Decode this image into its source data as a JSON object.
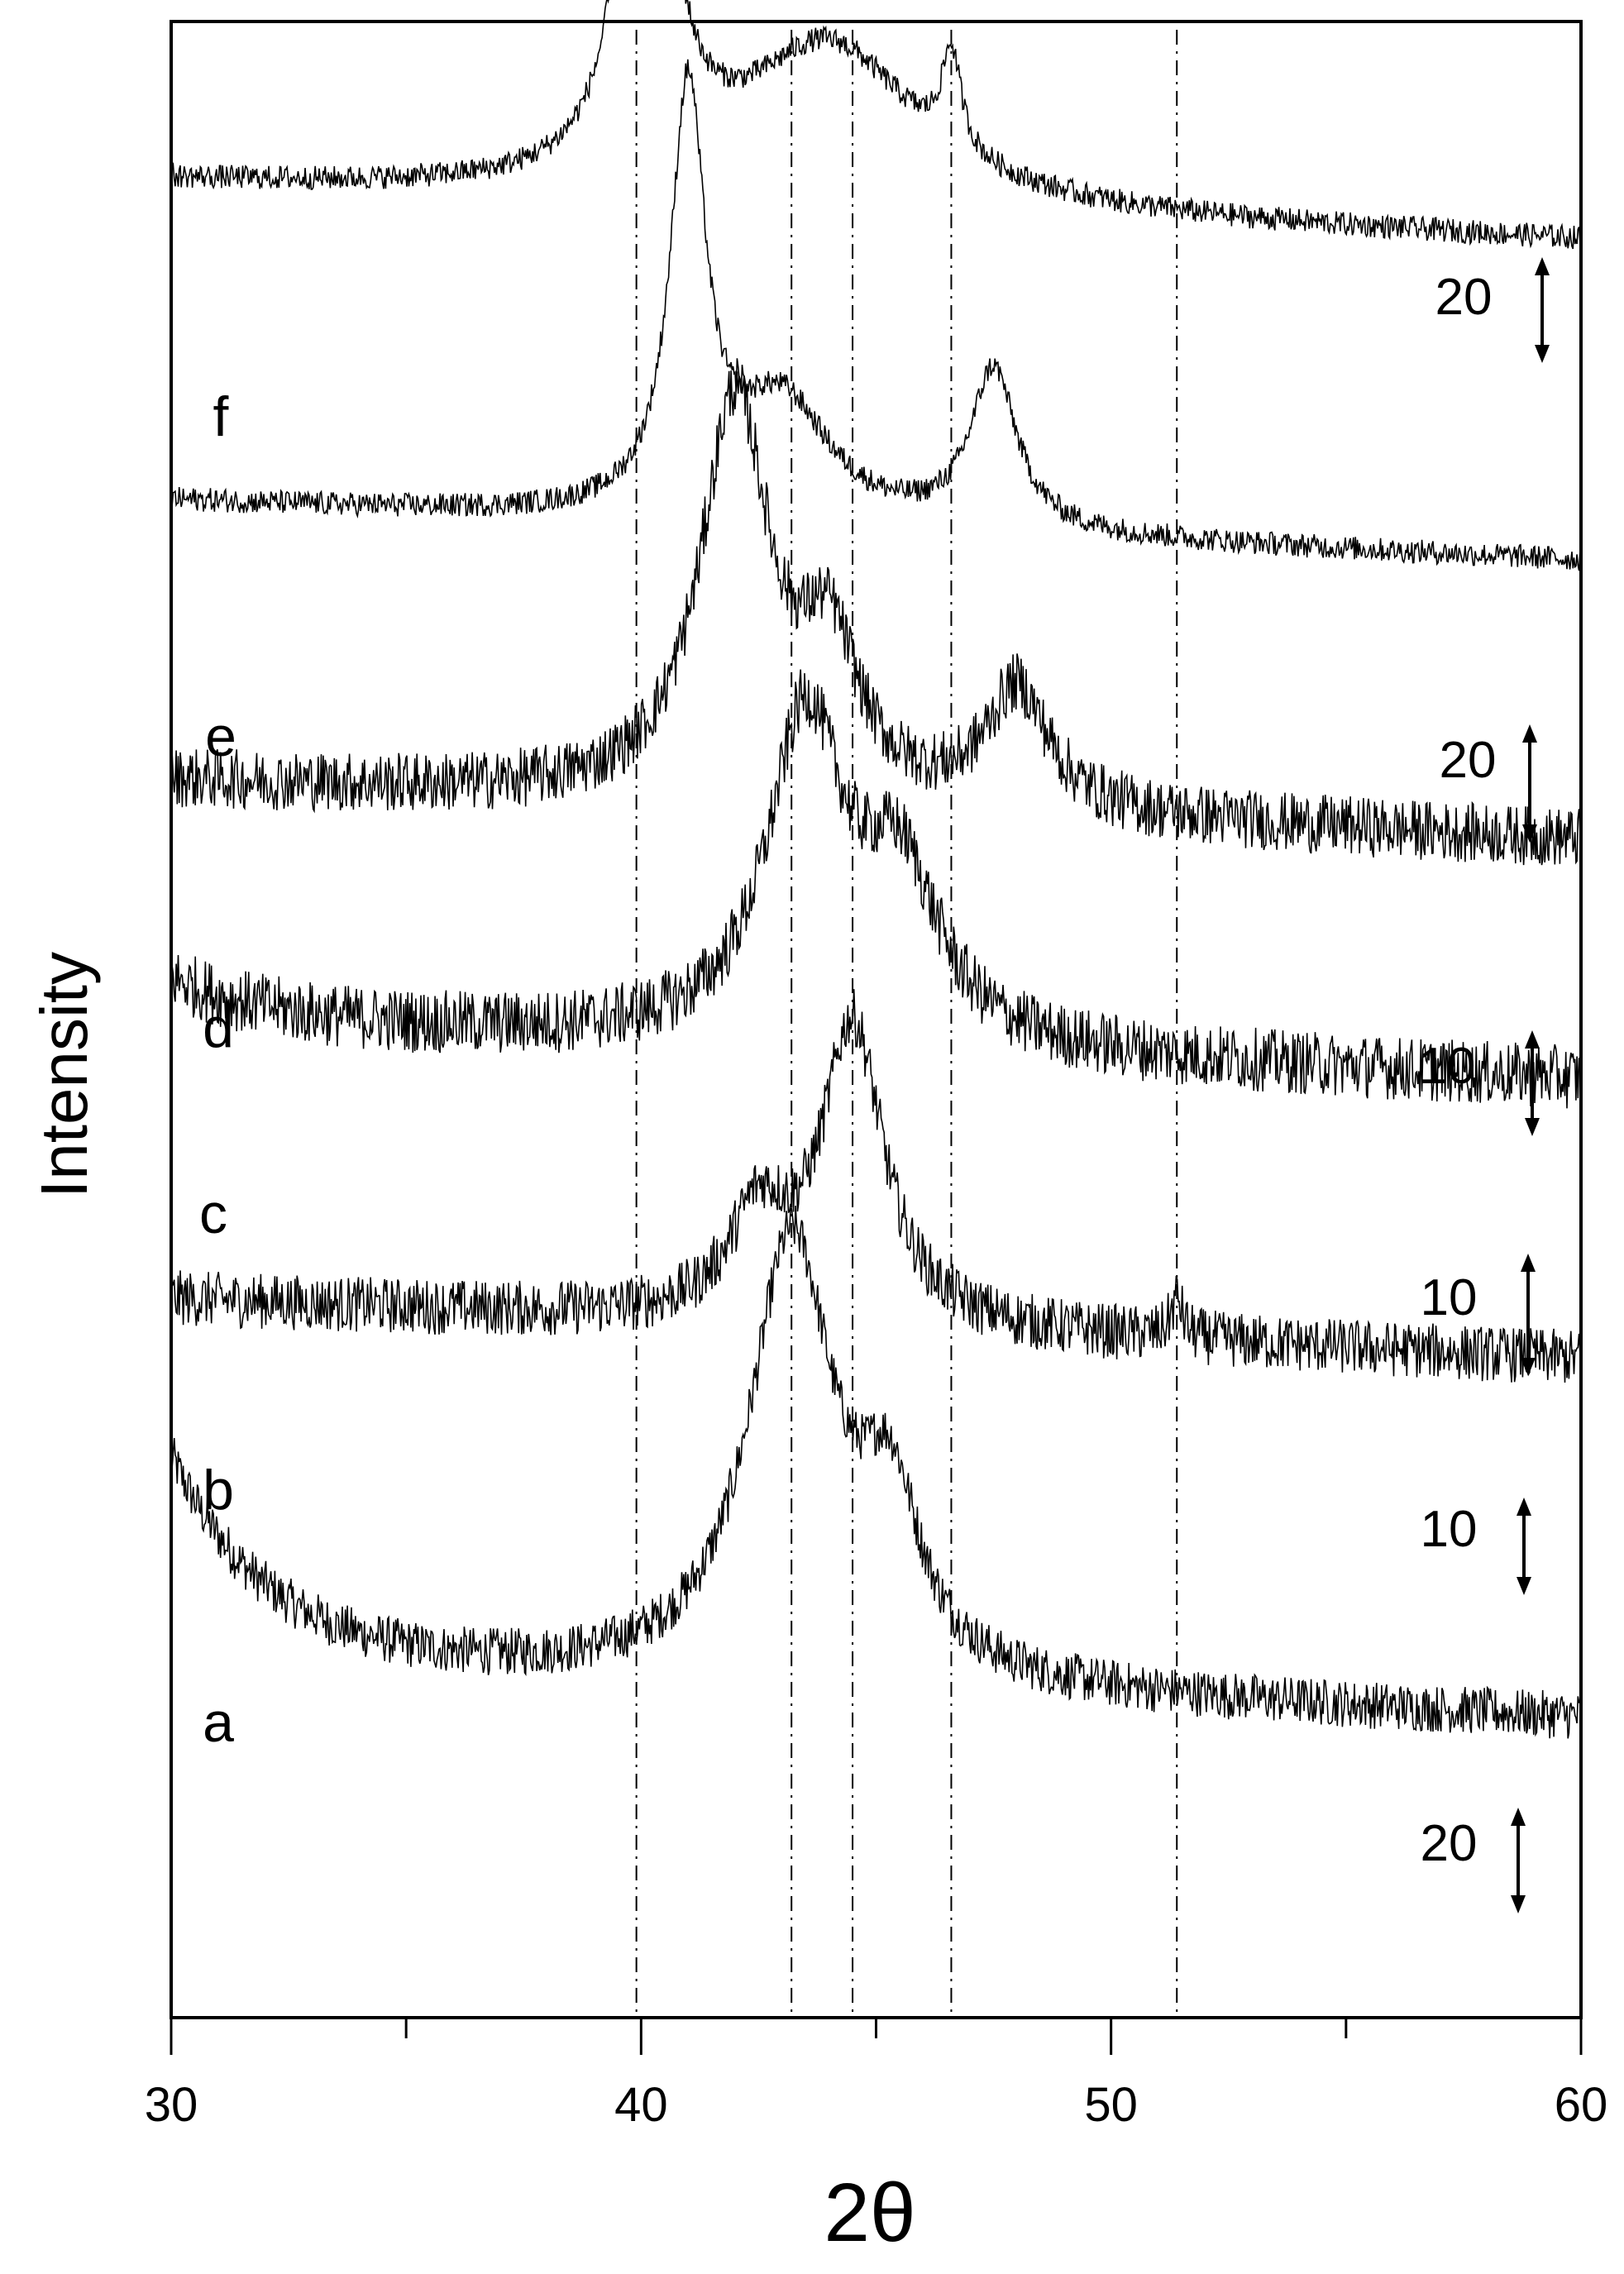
{
  "chart_data": {
    "type": "line",
    "title": "",
    "xlabel": "2θ",
    "ylabel": "Intensity",
    "xlim": [
      30,
      60
    ],
    "x_ticks": [
      "30",
      "40",
      "50",
      "60"
    ],
    "y_ticks": [],
    "grid": false,
    "legend": "none",
    "reference_lines_x": [
      39.9,
      43.2,
      44.5,
      46.6,
      51.4
    ],
    "series": [
      {
        "name": "a",
        "scale_bar": "20",
        "baseline": 0.18,
        "peaks": [
          {
            "x": 43.2,
            "h": 0.22,
            "w": 2.2
          },
          {
            "x": 45.3,
            "h": 0.08,
            "w": 1.5
          }
        ],
        "start_offset": 0.1,
        "noise": 0.012
      },
      {
        "name": "b",
        "scale_bar": "10",
        "baseline": 0.36,
        "peaks": [
          {
            "x": 44.5,
            "h": 0.15,
            "w": 1.6
          },
          {
            "x": 42.5,
            "h": 0.05,
            "w": 1.5
          },
          {
            "x": 51.4,
            "h": 0.02,
            "w": 0.3
          }
        ],
        "start_offset": 0.0,
        "noise": 0.014
      },
      {
        "name": "c",
        "scale_bar": "10",
        "baseline": 0.5,
        "peaks": [
          {
            "x": 43.5,
            "h": 0.16,
            "w": 2.0
          },
          {
            "x": 45.5,
            "h": 0.08,
            "w": 2.0
          }
        ],
        "start_offset": 0.02,
        "noise": 0.016
      },
      {
        "name": "d",
        "scale_bar": "10",
        "baseline": 0.62,
        "peaks": [
          {
            "x": 42.0,
            "h": 0.2,
            "w": 1.8
          },
          {
            "x": 44.0,
            "h": 0.07,
            "w": 1.5
          },
          {
            "x": 48.0,
            "h": 0.06,
            "w": 1.6
          }
        ],
        "start_offset": 0.0,
        "noise": 0.015
      },
      {
        "name": "e",
        "scale_bar": "20",
        "baseline": 0.76,
        "peaks": [
          {
            "x": 41.0,
            "h": 0.21,
            "w": 0.9
          },
          {
            "x": 43.0,
            "h": 0.06,
            "w": 2.5
          },
          {
            "x": 47.5,
            "h": 0.08,
            "w": 1.2
          }
        ],
        "start_offset": 0.0,
        "noise": 0.006
      },
      {
        "name": "f",
        "scale_bar": "20",
        "baseline": 0.92,
        "peaks": [
          {
            "x": 40.1,
            "h": 0.3,
            "w": 1.0
          },
          {
            "x": 44.0,
            "h": 0.08,
            "w": 4.5
          },
          {
            "x": 46.6,
            "h": 0.05,
            "w": 0.5
          }
        ],
        "start_offset": 0.0,
        "noise": 0.006
      }
    ]
  },
  "labels": {
    "x_axis_title": "2θ",
    "y_axis_title": "Intensity",
    "curve_labels": [
      "a",
      "b",
      "c",
      "d",
      "e",
      "f"
    ],
    "scale_bars": [
      "20",
      "10",
      "10",
      "10",
      "20",
      "20"
    ]
  }
}
